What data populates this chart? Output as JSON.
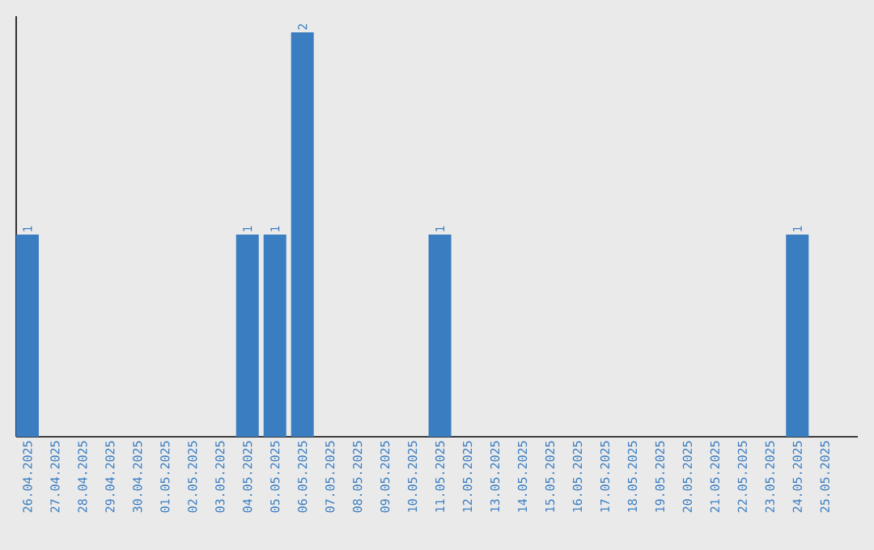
{
  "chart_data": {
    "type": "bar",
    "categories": [
      "26.04.2025",
      "27.04.2025",
      "28.04.2025",
      "29.04.2025",
      "30.04.2025",
      "01.05.2025",
      "02.05.2025",
      "03.05.2025",
      "04.05.2025",
      "05.05.2025",
      "06.05.2025",
      "07.05.2025",
      "08.05.2025",
      "09.05.2025",
      "10.05.2025",
      "11.05.2025",
      "12.05.2025",
      "13.05.2025",
      "14.05.2025",
      "15.05.2025",
      "16.05.2025",
      "17.05.2025",
      "18.05.2025",
      "19.05.2025",
      "20.05.2025",
      "21.05.2025",
      "22.05.2025",
      "23.05.2025",
      "24.05.2025",
      "25.05.2025"
    ],
    "values": [
      1,
      0,
      0,
      0,
      0,
      0,
      0,
      0,
      1,
      1,
      2,
      0,
      0,
      0,
      0,
      1,
      0,
      0,
      0,
      0,
      0,
      0,
      0,
      0,
      0,
      0,
      0,
      0,
      1,
      0
    ],
    "value_labels": [
      "1",
      null,
      null,
      null,
      null,
      null,
      null,
      null,
      "1",
      "1",
      "2",
      null,
      null,
      null,
      null,
      "1",
      null,
      null,
      null,
      null,
      null,
      null,
      null,
      null,
      null,
      null,
      null,
      null,
      "1",
      null
    ],
    "color": "#3a7dc1",
    "grid": false
  }
}
